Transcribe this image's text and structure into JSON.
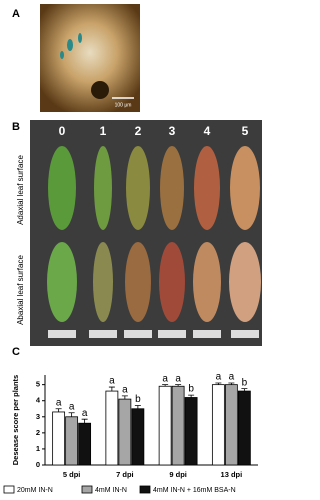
{
  "panel_a": {
    "letter": "A",
    "scale_bar": "100 μm"
  },
  "panel_b": {
    "letter": "B",
    "scores": [
      "0",
      "1",
      "2",
      "3",
      "4",
      "5"
    ],
    "row_labels": [
      "Adaxial leaf surface",
      "Abaxial leaf surface"
    ]
  },
  "panel_c": {
    "letter": "C"
  },
  "chart_data": {
    "type": "bar",
    "ylabel": "Desease score per plants",
    "categories": [
      "5 dpi",
      "7 dpi",
      "9 dpi",
      "13 dpi"
    ],
    "series": [
      {
        "name": "20mM IN-N",
        "color": "#ffffff",
        "values": [
          3.3,
          4.6,
          4.9,
          5.0
        ],
        "errors": [
          0.2,
          0.25,
          0.1,
          0.1
        ],
        "letters": [
          "a",
          "a",
          "a",
          "a"
        ]
      },
      {
        "name": "4mM IN-N",
        "color": "#a6a6a6",
        "values": [
          3.0,
          4.1,
          4.9,
          5.0
        ],
        "errors": [
          0.25,
          0.2,
          0.1,
          0.1
        ],
        "letters": [
          "a",
          "a",
          "a",
          "a"
        ]
      },
      {
        "name": "4mM IN-N + 16mM BSA-N",
        "color": "#111111",
        "values": [
          2.6,
          3.5,
          4.2,
          4.6
        ],
        "errors": [
          0.25,
          0.2,
          0.15,
          0.15
        ],
        "letters": [
          "a",
          "b",
          "b",
          "b"
        ]
      }
    ],
    "ylim": [
      0,
      5.6
    ],
    "yticks": [
      0,
      1,
      2,
      3,
      4,
      5
    ]
  }
}
